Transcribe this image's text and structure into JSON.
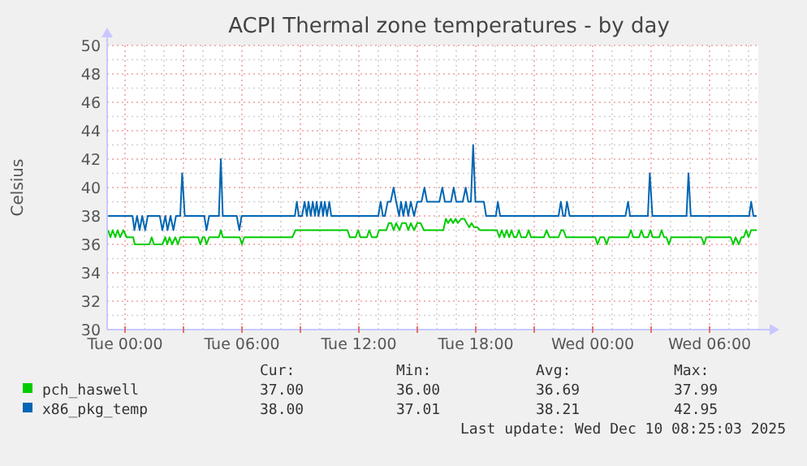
{
  "chart_data": {
    "type": "line",
    "title": "ACPI Thermal zone temperatures - by day",
    "ylabel": "Celsius",
    "xlim": [
      "2025-12-08T23:05",
      "2025-12-10T08:30"
    ],
    "xticks": [
      {
        "value": "2025-12-09T00:00",
        "label": "Tue 00:00"
      },
      {
        "value": "2025-12-09T01:00",
        "label": null
      },
      {
        "value": "2025-12-09T02:00",
        "label": null
      },
      {
        "value": "2025-12-09T03:00",
        "label": null
      },
      {
        "value": "2025-12-09T04:00",
        "label": null
      },
      {
        "value": "2025-12-09T05:00",
        "label": null
      },
      {
        "value": "2025-12-09T06:00",
        "label": "Tue 06:00"
      },
      {
        "value": "2025-12-09T07:00",
        "label": null
      },
      {
        "value": "2025-12-09T08:00",
        "label": null
      },
      {
        "value": "2025-12-09T09:00",
        "label": null
      },
      {
        "value": "2025-12-09T10:00",
        "label": null
      },
      {
        "value": "2025-12-09T11:00",
        "label": null
      },
      {
        "value": "2025-12-09T12:00",
        "label": "Tue 12:00"
      },
      {
        "value": "2025-12-09T13:00",
        "label": null
      },
      {
        "value": "2025-12-09T14:00",
        "label": null
      },
      {
        "value": "2025-12-09T15:00",
        "label": null
      },
      {
        "value": "2025-12-09T16:00",
        "label": null
      },
      {
        "value": "2025-12-09T17:00",
        "label": null
      },
      {
        "value": "2025-12-09T18:00",
        "label": "Tue 18:00"
      },
      {
        "value": "2025-12-09T19:00",
        "label": null
      },
      {
        "value": "2025-12-09T20:00",
        "label": null
      },
      {
        "value": "2025-12-09T21:00",
        "label": null
      },
      {
        "value": "2025-12-09T22:00",
        "label": null
      },
      {
        "value": "2025-12-09T23:00",
        "label": null
      },
      {
        "value": "2025-12-10T00:00",
        "label": "Wed 00:00"
      },
      {
        "value": "2025-12-10T01:00",
        "label": null
      },
      {
        "value": "2025-12-10T02:00",
        "label": null
      },
      {
        "value": "2025-12-10T03:00",
        "label": null
      },
      {
        "value": "2025-12-10T04:00",
        "label": null
      },
      {
        "value": "2025-12-10T05:00",
        "label": null
      },
      {
        "value": "2025-12-10T06:00",
        "label": "Wed 06:00"
      },
      {
        "value": "2025-12-10T07:00",
        "label": null
      },
      {
        "value": "2025-12-10T08:00",
        "label": null
      }
    ],
    "ylim": [
      30,
      50
    ],
    "yticks": [
      30,
      {
        "value": 31,
        "label": null
      },
      32,
      {
        "value": 33,
        "label": null
      },
      34,
      {
        "value": 35,
        "label": null
      },
      36,
      {
        "value": 37,
        "label": null
      },
      38,
      {
        "value": 39,
        "label": null
      },
      40,
      {
        "value": 41,
        "label": null
      },
      42,
      {
        "value": 43,
        "label": null
      },
      44,
      {
        "value": 45,
        "label": null
      },
      46,
      {
        "value": 47,
        "label": null
      },
      48,
      {
        "value": 49,
        "label": null
      },
      50
    ],
    "grid": true,
    "legend": "bottom",
    "marker": "none",
    "line_style": "solid",
    "series": [
      {
        "name": "pch_haswell",
        "color": "#00cc00",
        "x": [
          "2025-12-08T23:08",
          "2025-12-08T23:15",
          "2025-12-08T23:22",
          "2025-12-08T23:30",
          "2025-12-08T23:37",
          "2025-12-08T23:45",
          "2025-12-08T23:55",
          "2025-12-09T00:05",
          "2025-12-09T00:25",
          "2025-12-09T00:30",
          "2025-12-09T01:15",
          "2025-12-09T01:22",
          "2025-12-09T01:29",
          "2025-12-09T01:55",
          "2025-12-09T02:04",
          "2025-12-09T02:10",
          "2025-12-09T02:17",
          "2025-12-09T02:25",
          "2025-12-09T02:35",
          "2025-12-09T02:43",
          "2025-12-09T02:50",
          "2025-12-09T03:45",
          "2025-12-09T03:52",
          "2025-12-09T03:59",
          "2025-12-09T04:05",
          "2025-12-09T04:11",
          "2025-12-09T04:19",
          "2025-12-09T04:49",
          "2025-12-09T04:55",
          "2025-12-09T05:01",
          "2025-12-09T05:53",
          "2025-12-09T06:00",
          "2025-12-09T06:07",
          "2025-12-09T08:35",
          "2025-12-09T08:45",
          "2025-12-09T08:52",
          "2025-12-09T11:25",
          "2025-12-09T11:32",
          "2025-12-09T11:50",
          "2025-12-09T11:58",
          "2025-12-09T12:05",
          "2025-12-09T12:25",
          "2025-12-09T12:32",
          "2025-12-09T12:40",
          "2025-12-09T12:55",
          "2025-12-09T13:02",
          "2025-12-09T13:25",
          "2025-12-09T13:32",
          "2025-12-09T13:40",
          "2025-12-09T13:47",
          "2025-12-09T13:55",
          "2025-12-09T14:05",
          "2025-12-09T14:13",
          "2025-12-09T14:25",
          "2025-12-09T14:32",
          "2025-12-09T14:40",
          "2025-12-09T14:50",
          "2025-12-09T15:00",
          "2025-12-09T15:10",
          "2025-12-09T15:20",
          "2025-12-09T15:40",
          "2025-12-09T16:20",
          "2025-12-09T16:28",
          "2025-12-09T16:35",
          "2025-12-09T16:43",
          "2025-12-09T16:50",
          "2025-12-09T16:58",
          "2025-12-09T17:05",
          "2025-12-09T17:15",
          "2025-12-09T17:25",
          "2025-12-09T17:32",
          "2025-12-09T17:40",
          "2025-12-09T17:47",
          "2025-12-09T17:55",
          "2025-12-09T18:05",
          "2025-12-09T18:13",
          "2025-12-09T19:05",
          "2025-12-09T19:13",
          "2025-12-09T19:20",
          "2025-12-09T19:28",
          "2025-12-09T19:35",
          "2025-12-09T19:43",
          "2025-12-09T19:50",
          "2025-12-09T19:58",
          "2025-12-09T20:05",
          "2025-12-09T20:13",
          "2025-12-09T20:20",
          "2025-12-09T20:35",
          "2025-12-09T20:43",
          "2025-12-09T20:50",
          "2025-12-09T21:30",
          "2025-12-09T21:38",
          "2025-12-09T21:47",
          "2025-12-09T22:15",
          "2025-12-09T22:23",
          "2025-12-09T22:30",
          "2025-12-09T22:38",
          "2025-12-10T00:08",
          "2025-12-10T00:15",
          "2025-12-10T00:23",
          "2025-12-10T00:35",
          "2025-12-10T00:43",
          "2025-12-10T00:50",
          "2025-12-10T01:50",
          "2025-12-10T01:58",
          "2025-12-10T02:05",
          "2025-12-10T02:23",
          "2025-12-10T02:30",
          "2025-12-10T02:38",
          "2025-12-10T02:50",
          "2025-12-10T02:58",
          "2025-12-10T03:05",
          "2025-12-10T03:25",
          "2025-12-10T03:32",
          "2025-12-10T03:40",
          "2025-12-10T03:47",
          "2025-12-10T03:55",
          "2025-12-10T04:02",
          "2025-12-10T05:35",
          "2025-12-10T05:43",
          "2025-12-10T05:50",
          "2025-12-10T07:05",
          "2025-12-10T07:13",
          "2025-12-10T07:20",
          "2025-12-10T07:30",
          "2025-12-10T07:38",
          "2025-12-10T07:45",
          "2025-12-10T07:53",
          "2025-12-10T08:00",
          "2025-12-10T08:08",
          "2025-12-10T08:25"
        ],
        "values": [
          37,
          36.5,
          37,
          36.5,
          37,
          36.5,
          37,
          36.5,
          36.5,
          36,
          36,
          36.5,
          36,
          36,
          36.5,
          36,
          36.5,
          36,
          36.5,
          36,
          36.5,
          36.5,
          36,
          36.5,
          36.5,
          36,
          36.5,
          36.5,
          37,
          36.5,
          36.5,
          36,
          36.5,
          36.5,
          37,
          37,
          37,
          36.5,
          36.5,
          37,
          36.5,
          36.5,
          37,
          36.5,
          36.5,
          37,
          37,
          37.5,
          37.5,
          37,
          37.5,
          37,
          37.5,
          37.5,
          37,
          37.5,
          37,
          37.5,
          37.5,
          37,
          37,
          37,
          37.8,
          37.5,
          37.8,
          37.5,
          37.8,
          37.5,
          37.8,
          37.8,
          37.5,
          37.2,
          37.5,
          37.2,
          37.2,
          37,
          37,
          36.5,
          37,
          36.5,
          37,
          36.5,
          37,
          36.5,
          36.5,
          37,
          36.5,
          36.5,
          37,
          36.5,
          36.5,
          37,
          36.5,
          36.5,
          37,
          37,
          36.5,
          36.5,
          36,
          36.5,
          36.5,
          36,
          36.5,
          36.5,
          37,
          36.5,
          36.5,
          37,
          36.5,
          36.5,
          37,
          36.5,
          36.5,
          37,
          36.5,
          36.5,
          36,
          36.5,
          36.5,
          36,
          36.5,
          36.5,
          36,
          36.5,
          36,
          36.5,
          36.5,
          37,
          36.5,
          37,
          37
        ]
      },
      {
        "name": "x86_pkg_temp",
        "color": "#0066b3",
        "x": [
          "2025-12-08T23:08",
          "2025-12-09T00:23",
          "2025-12-09T00:29",
          "2025-12-09T00:37",
          "2025-12-09T00:45",
          "2025-12-09T00:53",
          "2025-12-09T01:02",
          "2025-12-09T01:10",
          "2025-12-09T01:47",
          "2025-12-09T01:55",
          "2025-12-09T02:04",
          "2025-12-09T02:11",
          "2025-12-09T02:20",
          "2025-12-09T02:29",
          "2025-12-09T02:37",
          "2025-12-09T02:50",
          "2025-12-09T02:56",
          "2025-12-09T03:04",
          "2025-12-09T04:04",
          "2025-12-09T04:11",
          "2025-12-09T04:19",
          "2025-12-09T04:49",
          "2025-12-09T04:55",
          "2025-12-09T05:01",
          "2025-12-09T05:44",
          "2025-12-09T05:52",
          "2025-12-09T05:59",
          "2025-12-09T08:43",
          "2025-12-09T08:49",
          "2025-12-09T08:55",
          "2025-12-09T09:05",
          "2025-12-09T09:13",
          "2025-12-09T09:20",
          "2025-12-09T09:25",
          "2025-12-09T09:32",
          "2025-12-09T09:38",
          "2025-12-09T09:45",
          "2025-12-09T09:50",
          "2025-12-09T09:56",
          "2025-12-09T10:04",
          "2025-12-09T10:10",
          "2025-12-09T10:15",
          "2025-12-09T10:22",
          "2025-12-09T10:29",
          "2025-12-09T10:35",
          "2025-12-09T13:00",
          "2025-12-09T13:07",
          "2025-12-09T13:14",
          "2025-12-09T13:20",
          "2025-12-09T13:29",
          "2025-12-09T13:38",
          "2025-12-09T13:47",
          "2025-12-09T13:55",
          "2025-12-09T14:04",
          "2025-12-09T14:10",
          "2025-12-09T14:17",
          "2025-12-09T14:25",
          "2025-12-09T14:32",
          "2025-12-09T14:40",
          "2025-12-09T14:50",
          "2025-12-09T15:00",
          "2025-12-09T15:13",
          "2025-12-09T15:22",
          "2025-12-09T15:30",
          "2025-12-09T16:08",
          "2025-12-09T16:17",
          "2025-12-09T16:25",
          "2025-12-09T16:44",
          "2025-12-09T16:52",
          "2025-12-09T17:00",
          "2025-12-09T17:20",
          "2025-12-09T17:29",
          "2025-12-09T17:37",
          "2025-12-09T17:45",
          "2025-12-09T17:52",
          "2025-12-09T17:59",
          "2025-12-09T18:25",
          "2025-12-09T18:32",
          "2025-12-09T19:02",
          "2025-12-09T19:08",
          "2025-12-09T19:15",
          "2025-12-09T22:15",
          "2025-12-09T22:22",
          "2025-12-09T22:29",
          "2025-12-09T22:35",
          "2025-12-09T22:41",
          "2025-12-09T22:49",
          "2025-12-10T01:41",
          "2025-12-10T01:49",
          "2025-12-10T01:55",
          "2025-12-10T02:50",
          "2025-12-10T02:56",
          "2025-12-10T03:04",
          "2025-12-10T04:49",
          "2025-12-10T04:55",
          "2025-12-10T05:02",
          "2025-12-10T08:02",
          "2025-12-10T08:08",
          "2025-12-10T08:15",
          "2025-12-10T08:25"
        ],
        "values": [
          38,
          38,
          37,
          38,
          37,
          38,
          37,
          38,
          38,
          37,
          38,
          37,
          38,
          37,
          38,
          38,
          41,
          38,
          38,
          37,
          38,
          38,
          42,
          38,
          38,
          37,
          38,
          38,
          39,
          38,
          38,
          39,
          38,
          39,
          38,
          39,
          38,
          39,
          38,
          39,
          38,
          39,
          38,
          39,
          38,
          38,
          39,
          38,
          38,
          39,
          39,
          40,
          39,
          38,
          39,
          38,
          39,
          38,
          39,
          38,
          39,
          39,
          40,
          39,
          39,
          40,
          39,
          39,
          40,
          39,
          39,
          40,
          39,
          39,
          43,
          39,
          39,
          38,
          38,
          39,
          38,
          38,
          39,
          38,
          38,
          39,
          38,
          38,
          39,
          38,
          38,
          41,
          38,
          38,
          41,
          38,
          38,
          39,
          38,
          38
        ]
      }
    ],
    "annotations": [
      "Cur:",
      "Min:",
      "Avg:",
      "Max:",
      "37.00",
      "36.00",
      "36.69",
      "37.99",
      "38.00",
      "37.01",
      "38.21",
      "42.95",
      "Last update: Wed Dec 10 08:25:03 2025"
    ]
  }
}
